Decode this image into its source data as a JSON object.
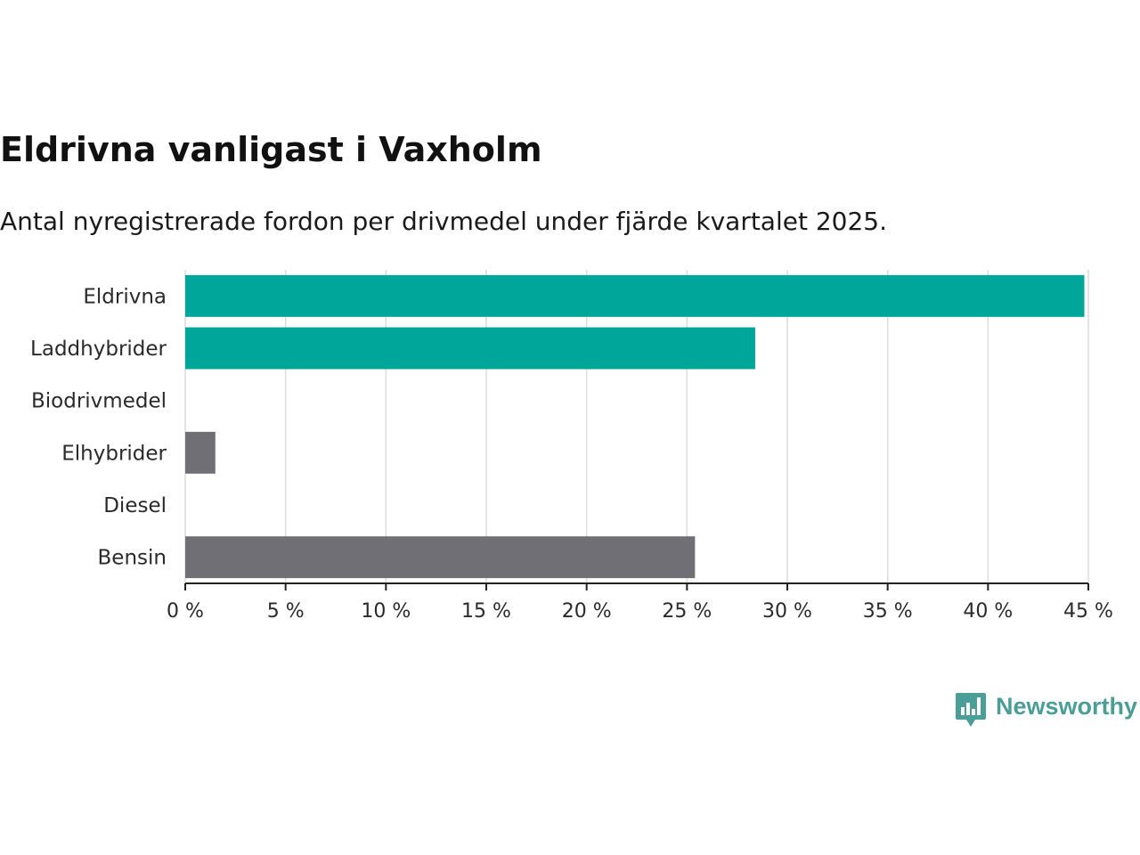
{
  "header": {
    "title": "Eldrivna vanligast i Vaxholm",
    "subtitle": "Antal nyregistrerade fordon per drivmedel under fjärde kvartalet 2025."
  },
  "brand": {
    "name": "Newsworthy",
    "color": "#4a9e97",
    "logo_icon": "bar-chart-speech-bubble-icon"
  },
  "colors": {
    "highlight": "#00a69a",
    "other": "#706f76",
    "grid": "#dcdcdc",
    "axis": "#222222"
  },
  "chart_data": {
    "type": "bar",
    "orientation": "horizontal",
    "categories": [
      "Eldrivna",
      "Laddhybrider",
      "Biodrivmedel",
      "Elhybrider",
      "Diesel",
      "Bensin"
    ],
    "values": [
      44.8,
      28.4,
      0,
      1.5,
      0,
      25.4
    ],
    "highlighted": [
      true,
      true,
      false,
      false,
      false,
      false
    ],
    "value_unit": "%",
    "xlim": [
      0,
      45
    ],
    "xticks": [
      0,
      5,
      10,
      15,
      20,
      25,
      30,
      35,
      40,
      45
    ],
    "xtick_labels": [
      "0 %",
      "5 %",
      "10 %",
      "15 %",
      "20 %",
      "25 %",
      "30 %",
      "35 %",
      "40 %",
      "45 %"
    ],
    "grid": true,
    "legend": "none"
  }
}
